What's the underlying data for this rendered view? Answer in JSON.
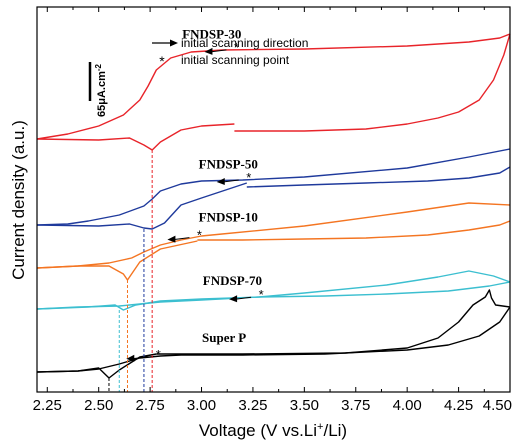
{
  "chart_data": {
    "type": "line",
    "xlabel": "Voltage (V vs.Li",
    "xlabel_sup": "+",
    "xlabel_end": "/Li)",
    "ylabel": "Current density (a.u.)",
    "xlim": [
      2.2,
      4.5
    ],
    "x_ticks": [
      "2.25",
      "2.50",
      "2.75",
      "3.00",
      "3.25",
      "3.50",
      "3.75",
      "4.00",
      "4.25",
      "4.50"
    ],
    "legend": {
      "arrow_label": "initial scanning direction",
      "star_label": "initial scanning point"
    },
    "scale_bar": {
      "label": "65μA.cm",
      "label_sup": "-2"
    },
    "series": [
      {
        "name": "FNDSP-30",
        "color": "#e8242a",
        "start_voltage": 3.16,
        "forward": [
          [
            3.16,
            131
          ],
          [
            3.5,
            131
          ],
          [
            3.8,
            129
          ],
          [
            4.0,
            124
          ],
          [
            4.15,
            118
          ],
          [
            4.25,
            112
          ],
          [
            4.35,
            100
          ],
          [
            4.42,
            80
          ],
          [
            4.47,
            55
          ],
          [
            4.5,
            34
          ]
        ],
        "backward": [
          [
            4.5,
            34
          ],
          [
            4.45,
            38
          ],
          [
            4.3,
            42
          ],
          [
            4.0,
            46
          ],
          [
            3.5,
            49
          ],
          [
            3.1,
            50
          ],
          [
            2.95,
            52
          ],
          [
            2.85,
            58
          ],
          [
            2.78,
            70
          ],
          [
            2.74,
            86
          ],
          [
            2.7,
            100
          ],
          [
            2.62,
            115
          ],
          [
            2.5,
            126
          ],
          [
            2.35,
            134
          ],
          [
            2.2,
            139
          ]
        ],
        "return": [
          [
            2.2,
            139
          ],
          [
            2.5,
            140
          ],
          [
            2.65,
            138
          ],
          [
            2.72,
            145
          ],
          [
            2.76,
            150
          ],
          [
            2.8,
            142
          ],
          [
            2.9,
            130
          ],
          [
            3.0,
            126
          ],
          [
            3.16,
            124
          ]
        ]
      },
      {
        "name": "FNDSP-50",
        "color": "#1f3a9c",
        "start_voltage": 3.22,
        "forward": [
          [
            3.22,
            187
          ],
          [
            3.5,
            185
          ],
          [
            3.8,
            183
          ],
          [
            4.1,
            181
          ],
          [
            4.3,
            178
          ],
          [
            4.45,
            173
          ],
          [
            4.5,
            167
          ]
        ],
        "backward": [
          [
            4.5,
            149
          ],
          [
            4.3,
            157
          ],
          [
            4.0,
            168
          ],
          [
            3.5,
            177
          ],
          [
            3.2,
            180
          ],
          [
            3.0,
            181
          ],
          [
            2.9,
            184
          ],
          [
            2.8,
            191
          ],
          [
            2.76,
            199
          ],
          [
            2.72,
            206
          ],
          [
            2.6,
            215
          ],
          [
            2.45,
            221
          ],
          [
            2.35,
            224
          ],
          [
            2.2,
            225
          ]
        ],
        "return": [
          [
            2.2,
            225
          ],
          [
            2.5,
            226
          ],
          [
            2.65,
            224
          ],
          [
            2.72,
            228
          ],
          [
            2.76,
            229
          ],
          [
            2.82,
            223
          ],
          [
            2.9,
            205
          ],
          [
            3.0,
            198
          ],
          [
            3.22,
            183
          ]
        ]
      },
      {
        "name": "FNDSP-10",
        "color": "#f47522",
        "start_voltage": 2.98,
        "forward": [
          [
            2.98,
            240
          ],
          [
            3.2,
            240
          ],
          [
            3.5,
            239
          ],
          [
            3.8,
            238
          ],
          [
            4.1,
            235
          ],
          [
            4.3,
            230
          ],
          [
            4.45,
            225
          ],
          [
            4.5,
            221
          ]
        ],
        "backward": [
          [
            4.5,
            205
          ],
          [
            4.3,
            203
          ],
          [
            4.0,
            212
          ],
          [
            3.5,
            226
          ],
          [
            3.1,
            234
          ],
          [
            3.0,
            236
          ],
          [
            2.9,
            240
          ],
          [
            2.8,
            245
          ],
          [
            2.72,
            252
          ],
          [
            2.66,
            258
          ],
          [
            2.55,
            263
          ],
          [
            2.4,
            266
          ],
          [
            2.2,
            268
          ]
        ],
        "return": [
          [
            2.2,
            268
          ],
          [
            2.4,
            266
          ],
          [
            2.55,
            266
          ],
          [
            2.62,
            274
          ],
          [
            2.64,
            280
          ],
          [
            2.7,
            262
          ],
          [
            2.8,
            249
          ],
          [
            2.98,
            241
          ]
        ]
      },
      {
        "name": "FNDSP-70",
        "color": "#3cbfd0",
        "start_voltage": 3.28,
        "forward": [
          [
            3.28,
            297
          ],
          [
            3.6,
            296
          ],
          [
            3.9,
            294
          ],
          [
            4.2,
            291
          ],
          [
            4.4,
            286
          ],
          [
            4.5,
            282
          ]
        ],
        "backward": [
          [
            4.5,
            282
          ],
          [
            4.42,
            276
          ],
          [
            4.3,
            271
          ],
          [
            4.15,
            277
          ],
          [
            3.9,
            285
          ],
          [
            3.5,
            293
          ],
          [
            3.28,
            297
          ],
          [
            3.0,
            300
          ],
          [
            2.8,
            302
          ],
          [
            2.7,
            304
          ],
          [
            2.6,
            306
          ],
          [
            2.4,
            307
          ],
          [
            2.2,
            309
          ]
        ],
        "return": [
          [
            2.2,
            309
          ],
          [
            2.45,
            307
          ],
          [
            2.58,
            305
          ],
          [
            2.62,
            310
          ],
          [
            2.68,
            305
          ],
          [
            2.8,
            301
          ],
          [
            3.0,
            299
          ],
          [
            3.28,
            297
          ]
        ]
      },
      {
        "name": "Super P",
        "color": "#000000",
        "start_voltage": 2.78,
        "forward": [
          [
            2.78,
            354
          ],
          [
            3.2,
            354
          ],
          [
            3.7,
            353
          ],
          [
            4.0,
            348
          ],
          [
            4.15,
            338
          ],
          [
            4.25,
            322
          ],
          [
            4.32,
            305
          ],
          [
            4.38,
            297
          ],
          [
            4.4,
            290
          ],
          [
            4.41,
            298
          ],
          [
            4.43,
            305
          ],
          [
            4.5,
            307
          ]
        ],
        "backward": [
          [
            4.5,
            307
          ],
          [
            4.45,
            322
          ],
          [
            4.35,
            336
          ],
          [
            4.2,
            345
          ],
          [
            4.0,
            350
          ],
          [
            3.6,
            354
          ],
          [
            3.2,
            355
          ],
          [
            2.9,
            355
          ],
          [
            2.8,
            356
          ],
          [
            2.7,
            358
          ],
          [
            2.6,
            364
          ],
          [
            2.5,
            369
          ],
          [
            2.4,
            371
          ],
          [
            2.2,
            372
          ]
        ],
        "return": [
          [
            2.2,
            372
          ],
          [
            2.4,
            371
          ],
          [
            2.5,
            368
          ],
          [
            2.55,
            378
          ],
          [
            2.6,
            370
          ],
          [
            2.7,
            357
          ],
          [
            2.78,
            354
          ]
        ]
      }
    ],
    "label_voltages": [
      3.05,
      3.13,
      3.13,
      3.15,
      3.11
    ],
    "dashed_drop_lines": [
      {
        "series": "Super P",
        "voltage": 2.55
      },
      {
        "series": "FNDSP-70",
        "voltage": 2.6
      },
      {
        "series": "FNDSP-10",
        "voltage": 2.64
      },
      {
        "series": "FNDSP-50",
        "voltage": 2.72
      },
      {
        "series": "FNDSP-30",
        "voltage": 2.76
      }
    ]
  }
}
